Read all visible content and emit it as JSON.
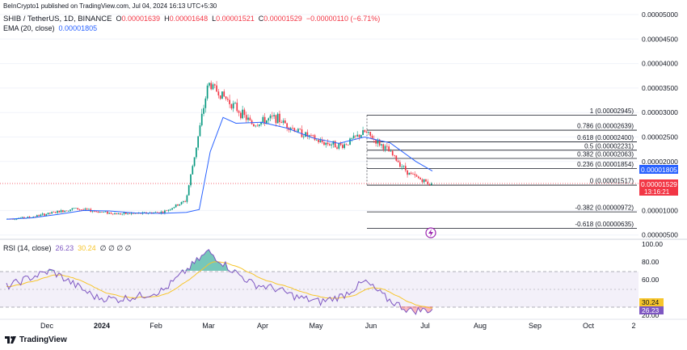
{
  "publisher": "BeInCrypto1 published on TradingView.com, Jul 04, 2024 16:13 UTC+5:30",
  "header": {
    "symbol": "SHIB / TetherUS, 1D, BINANCE",
    "o_label": "O",
    "o_value": "0.00001639",
    "h_label": "H",
    "h_value": "0.00001648",
    "l_label": "L",
    "l_value": "0.00001521",
    "c_label": "C",
    "c_value": "0.00001529",
    "change": "−0.00000110 (−6.71%)",
    "ema_label": "EMA (20, close)",
    "ema_value": "0.00001805"
  },
  "rsi_header": {
    "label": "RSI (14, close)",
    "value": "26.23",
    "ma_value": "30.24",
    "extras": "∅ ∅ ∅ ∅"
  },
  "price_axis": {
    "ticks": [
      "0.00005000",
      "0.00004500",
      "0.00004000",
      "0.00003500",
      "0.00003000",
      "0.00002500",
      "0.00002000",
      "0.00001000",
      "0.00000500"
    ],
    "ema_badge": "0.00001805",
    "price_badge": "0.00001529",
    "countdown": "13:16:21"
  },
  "rsi_axis": {
    "ticks": [
      "100.00",
      "80.00",
      "60.00",
      "20.00"
    ],
    "ma_badge": "30.24",
    "rsi_badge": "26.23"
  },
  "time_axis": [
    "Dec",
    "2024",
    "Feb",
    "Mar",
    "Apr",
    "May",
    "Jun",
    "Jul",
    "Aug",
    "Sep",
    "Oct",
    "2"
  ],
  "fib_levels": [
    {
      "label": "1 (0.00002945)",
      "value": 2.945e-05
    },
    {
      "label": "0.786 (0.00002639)",
      "value": 2.639e-05
    },
    {
      "label": "0.618 (0.00002400)",
      "value": 2.4e-05
    },
    {
      "label": "0.5 (0.00002231)",
      "value": 2.231e-05
    },
    {
      "label": "0.382 (0.00002063)",
      "value": 2.063e-05
    },
    {
      "label": "0.236 (0.00001854)",
      "value": 1.854e-05
    },
    {
      "label": "0 (0.00001517)",
      "value": 1.517e-05
    },
    {
      "label": "-0.382 (0.00000972)",
      "value": 9.72e-06
    },
    {
      "label": "-0.618 (0.00000635)",
      "value": 6.35e-06
    }
  ],
  "footer": {
    "brand": "TradingView"
  },
  "colors": {
    "up": "#089981",
    "down": "#f23645",
    "ema": "#2962ff",
    "rsi": "#7e57c2",
    "rsi_ma": "#f7c52b",
    "grid": "#e6e8ee",
    "text": "#131722"
  },
  "chart_data": {
    "type": "candlestick",
    "price_scale": [
      5e-06,
      5e-05
    ],
    "rsi_scale": [
      20,
      100
    ],
    "dates": [
      "2023-11-15",
      "2023-11-29",
      "2023-12-13",
      "2023-12-27",
      "2024-01-10",
      "2024-01-24",
      "2024-02-07",
      "2024-02-21",
      "2024-02-28",
      "2024-03-05",
      "2024-03-12",
      "2024-03-19",
      "2024-04-02",
      "2024-04-16",
      "2024-04-30",
      "2024-05-14",
      "2024-05-28",
      "2024-06-11",
      "2024-06-25",
      "2024-07-04"
    ],
    "close": [
      8.3e-06,
      8.6e-06,
      9.5e-06,
      1.04e-05,
      9.8e-06,
      9.3e-06,
      9.4e-06,
      9.7e-06,
      1.2e-05,
      3.6e-05,
      3.2e-05,
      2.75e-05,
      2.9e-05,
      2.62e-05,
      2.4e-05,
      2.32e-05,
      2.6e-05,
      2.25e-05,
      1.75e-05,
      1.529e-05
    ],
    "ema": [
      8.2e-06,
      8.5e-06,
      9.2e-06,
      1e-05,
      9.9e-06,
      9.5e-06,
      9.4e-06,
      9.6e-06,
      1.02e-05,
      2.2e-05,
      2.9e-05,
      2.78e-05,
      2.8e-05,
      2.68e-05,
      2.48e-05,
      2.37e-05,
      2.5e-05,
      2.38e-05,
      2e-05,
      1.805e-05
    ],
    "rsi": [
      52,
      62,
      70,
      55,
      40,
      38,
      42,
      48,
      70,
      92,
      72,
      55,
      50,
      40,
      35,
      42,
      58,
      38,
      25,
      26.23
    ]
  }
}
